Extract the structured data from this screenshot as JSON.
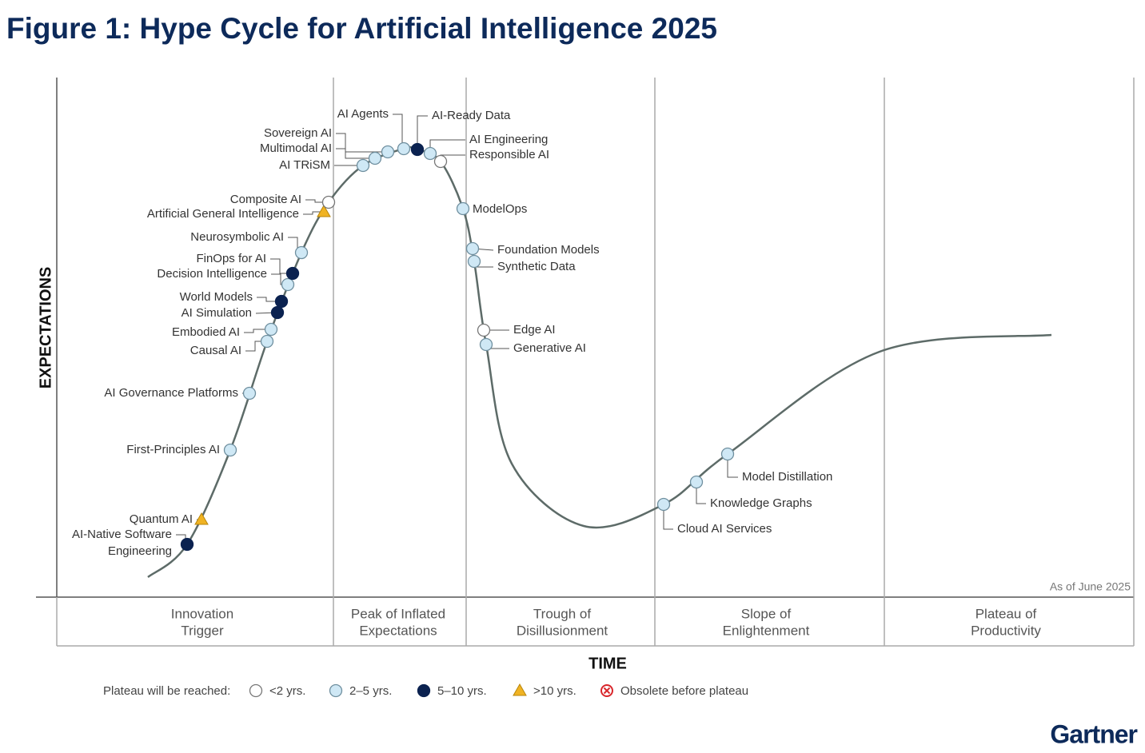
{
  "header": {
    "title": "Figure 1: Hype Cycle for Artificial Intelligence 2025"
  },
  "axes": {
    "y_label": "EXPECTATIONS",
    "x_label": "TIME"
  },
  "note": "As of June 2025",
  "phases": [
    [
      "Innovation",
      "Trigger"
    ],
    [
      "Peak of Inflated",
      "Expectations"
    ],
    [
      "Trough of",
      "Disillusionment"
    ],
    [
      "Slope of",
      "Enlightenment"
    ],
    [
      "Plateau of",
      "Productivity"
    ]
  ],
  "technologies": [
    "Quantum AI",
    [
      "AI-Native Software",
      "Engineering"
    ],
    "First-Principles AI",
    "AI Governance Platforms",
    "Causal AI",
    "Embodied AI",
    "AI Simulation",
    "World Models",
    "Decision Intelligence",
    "FinOps for AI",
    "Neurosymbolic AI",
    "Artificial General Intelligence",
    "Composite AI",
    "AI TRiSM",
    "Multimodal AI",
    "Sovereign AI",
    "AI Agents",
    "AI-Ready Data",
    "AI Engineering",
    "Responsible AI",
    "ModelOps",
    "Foundation Models",
    "Synthetic Data",
    "Edge AI",
    "Generative AI",
    "Cloud AI Services",
    "Knowledge Graphs",
    "Model Distillation"
  ],
  "legend": {
    "title": "Plateau will be reached:",
    "items": [
      "<2 yrs.",
      "2–5 yrs.",
      "5–10 yrs.",
      ">10 yrs.",
      "Obsolete before plateau"
    ]
  },
  "brand": "Gartner"
}
